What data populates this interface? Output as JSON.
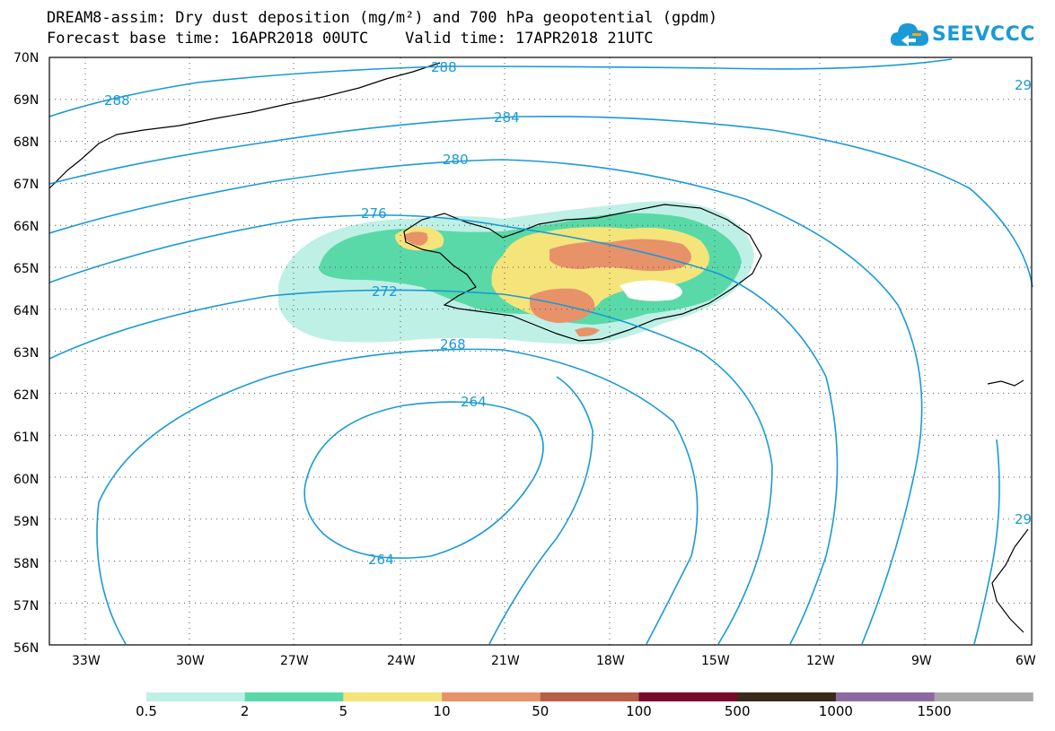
{
  "header": {
    "title_line1": "DREAM8-assim: Dry dust deposition (mg/m²) and 700 hPa geopotential (gpdm)",
    "title_line2": "Forecast base time: 16APR2018 00UTC    Valid time: 17APR2018 21UTC"
  },
  "logo": {
    "text": "SEEVCCC",
    "icon": "cloud-icon",
    "color": "#1a9ad6"
  },
  "map": {
    "lat_labels": [
      "70N",
      "69N",
      "68N",
      "67N",
      "66N",
      "65N",
      "64N",
      "63N",
      "62N",
      "61N",
      "60N",
      "59N",
      "58N",
      "57N",
      "56N"
    ],
    "lon_labels": [
      "33W",
      "30W",
      "27W",
      "24W",
      "21W",
      "18W",
      "15W",
      "12W",
      "9W",
      "6W"
    ],
    "contour_color": "#1a9ad6",
    "contour_labels": [
      "288",
      "288",
      "284",
      "280",
      "276",
      "272",
      "268",
      "264",
      "264",
      "29",
      "29"
    ]
  },
  "colorbar": {
    "labels": [
      "0.5",
      "2",
      "5",
      "10",
      "50",
      "100",
      "500",
      "1000",
      "1500"
    ],
    "colors": [
      "#bff0e6",
      "#5ad9a8",
      "#f5e47a",
      "#e8926a",
      "#b85f48",
      "#7a0a2a",
      "#3a2a1a",
      "#8c6aa0",
      "#a8a8a8"
    ]
  }
}
